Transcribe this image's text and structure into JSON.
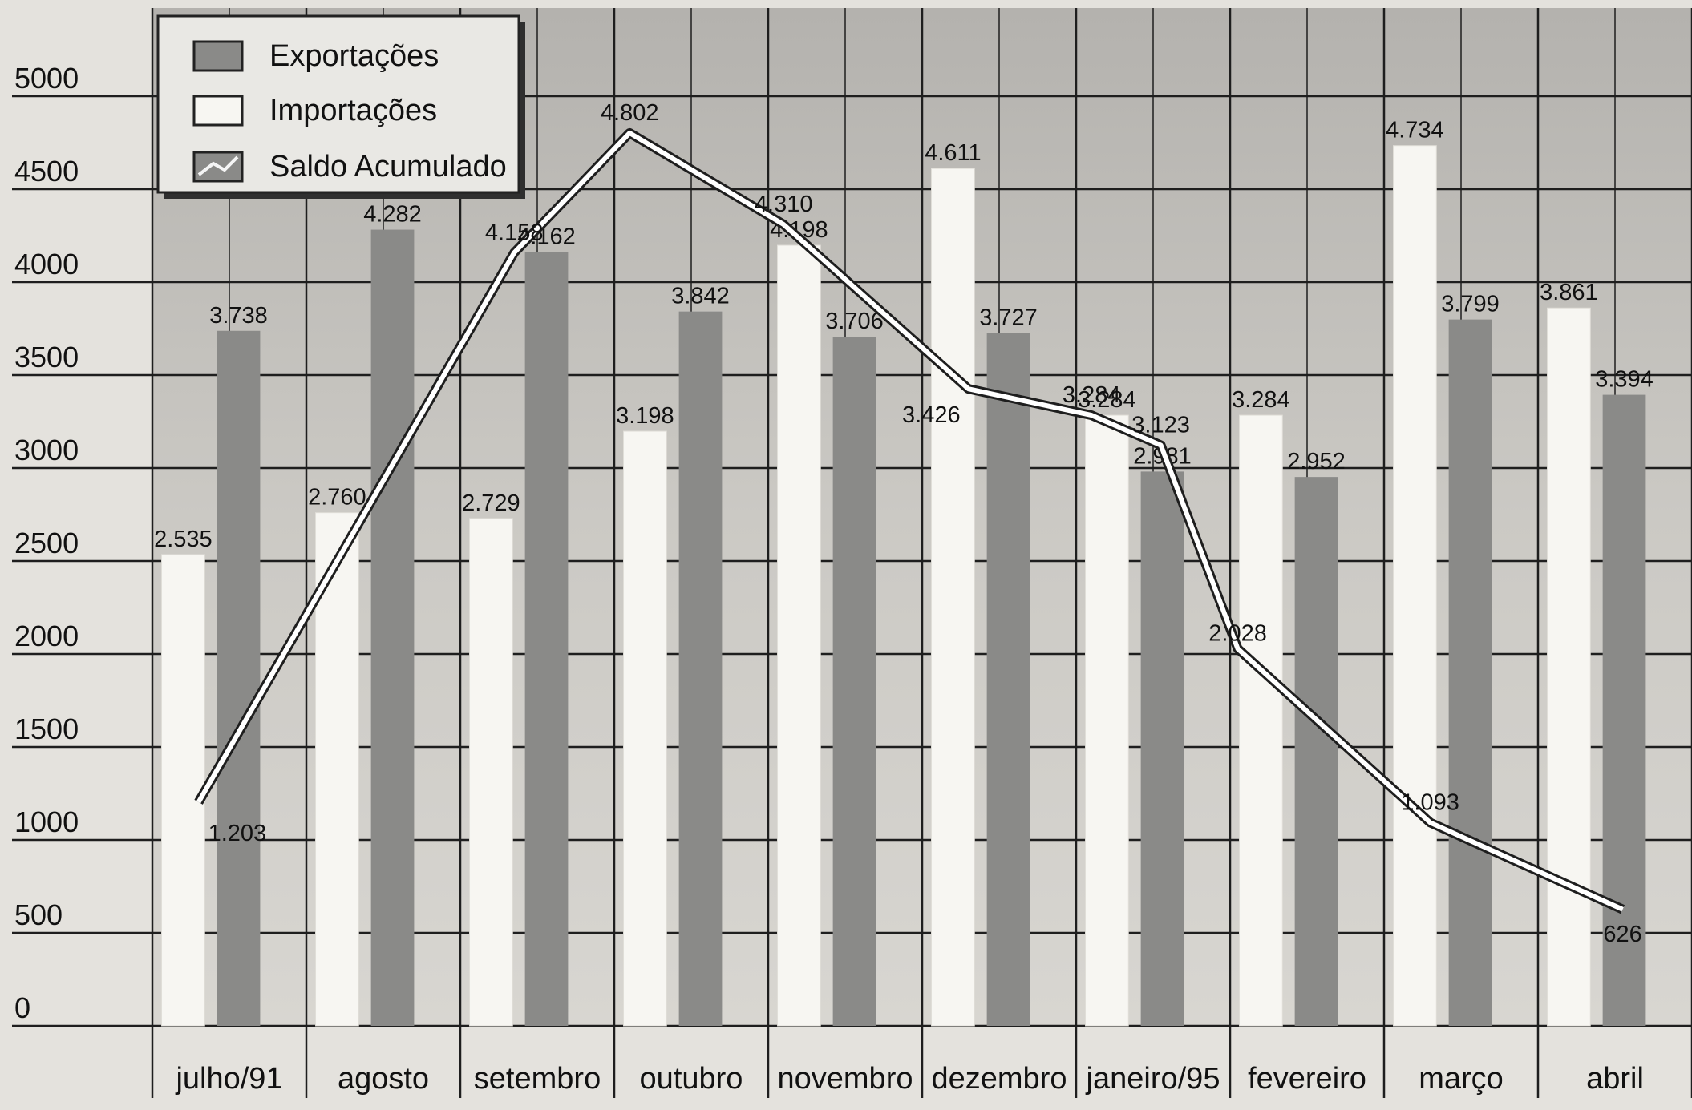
{
  "chart_data": {
    "type": "bar",
    "title": "",
    "xlabel": "",
    "ylabel": "",
    "ylim": [
      0,
      5000
    ],
    "yticks": [
      "0",
      "500",
      "1000",
      "1500",
      "2000",
      "2500",
      "3000",
      "3500",
      "4000",
      "4500",
      "5000"
    ],
    "grid": true,
    "legend_position": "top-left",
    "categories": [
      "julho/91",
      "agosto",
      "setembro",
      "outubro",
      "novembro",
      "dezembro",
      "janeiro/95",
      "fevereiro",
      "março",
      "abril"
    ],
    "series": [
      {
        "name": "Importações",
        "kind": "bar",
        "values": [
          2535,
          2760,
          2729,
          3198,
          4198,
          4611,
          3284,
          3284,
          4734,
          3861
        ],
        "labels": [
          "2.535",
          "2.760",
          "2.729",
          "3.198",
          "4.198",
          "4.611",
          "3.284",
          "3.284",
          "4.734",
          "3.861"
        ],
        "color": "#f7f6f2"
      },
      {
        "name": "Exportações",
        "kind": "bar",
        "values": [
          3738,
          4282,
          4162,
          3842,
          3706,
          3727,
          2981,
          2952,
          3799,
          3394
        ],
        "labels": [
          "3.738",
          "4.282",
          "4.162",
          "3.842",
          "3.706",
          "3.727",
          "2.981",
          "2.952",
          "3.799",
          "3.394"
        ],
        "color": "#8a8a88"
      },
      {
        "name": "Saldo Acumulado",
        "kind": "line",
        "points": [
          {
            "x": 0.3,
            "y": 1203,
            "label": "1.203"
          },
          {
            "x": 2.35,
            "y": 4158,
            "label": "4.158"
          },
          {
            "x": 3.1,
            "y": 4802,
            "label": "4.802"
          },
          {
            "x": 4.1,
            "y": 4310,
            "label": "4.310"
          },
          {
            "x": 5.3,
            "y": 3426,
            "label": "3.426"
          },
          {
            "x": 6.1,
            "y": 3284,
            "label": "3.284"
          },
          {
            "x": 6.55,
            "y": 3123,
            "label": "3.123"
          },
          {
            "x": 7.05,
            "y": 2028,
            "label": "2.028"
          },
          {
            "x": 8.3,
            "y": 1093,
            "label": "1.093"
          },
          {
            "x": 9.55,
            "y": 626,
            "label": "626"
          }
        ],
        "color": "#ffffff"
      }
    ]
  }
}
